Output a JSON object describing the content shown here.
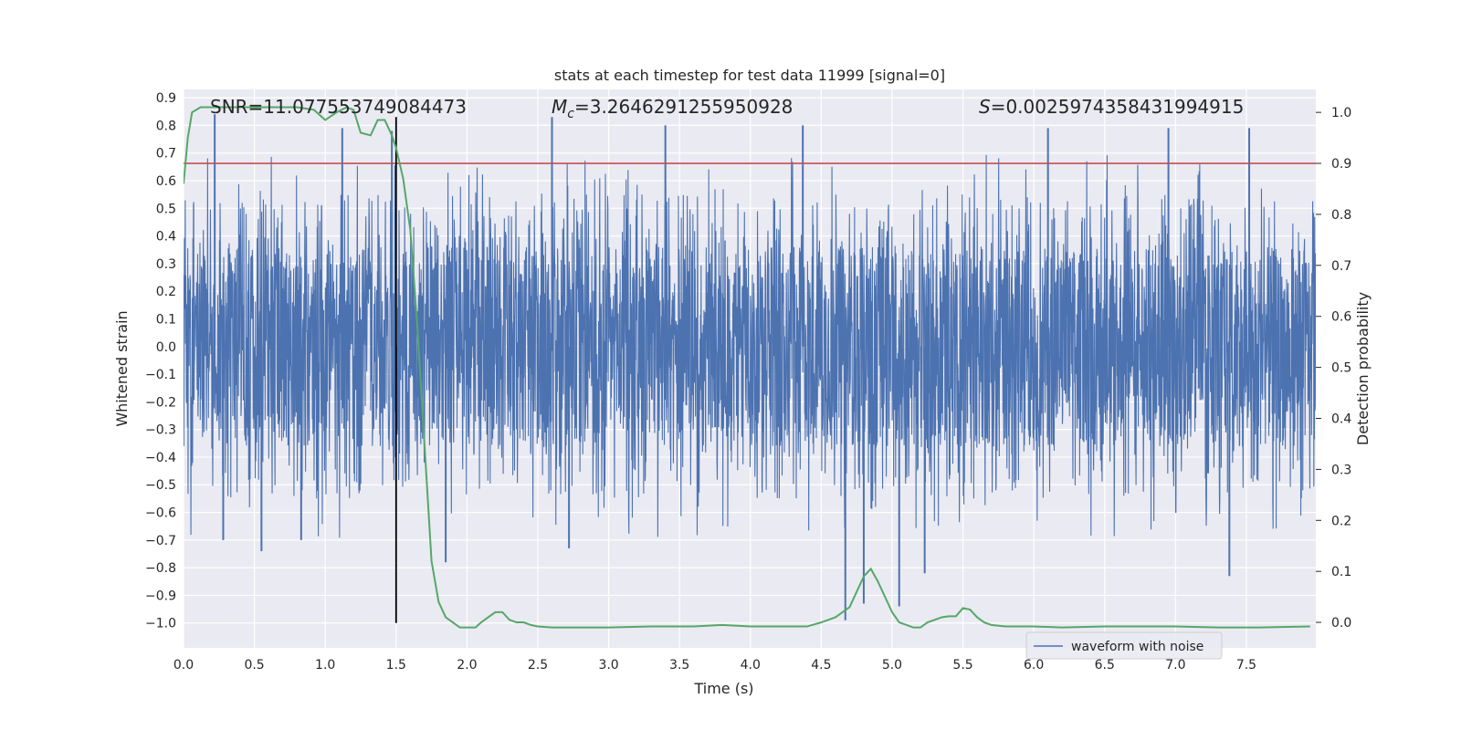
{
  "chart_data": {
    "type": "line",
    "title": "stats at each timestep for test data 11999 [signal=0]",
    "xlabel": "Time (s)",
    "ylabel": "Whitened strain",
    "y2label": "Detection probability",
    "xlim": [
      0.0,
      7.99
    ],
    "ylim": [
      -1.09,
      0.93
    ],
    "y2lim": [
      -0.05,
      1.045
    ],
    "xticks": [
      "0.0",
      "0.5",
      "1.0",
      "1.5",
      "2.0",
      "2.5",
      "3.0",
      "3.5",
      "4.0",
      "4.5",
      "5.0",
      "5.5",
      "6.0",
      "6.5",
      "7.0",
      "7.5"
    ],
    "yticks": [
      "0.9",
      "0.8",
      "0.7",
      "0.6",
      "0.5",
      "0.4",
      "0.3",
      "0.2",
      "0.1",
      "0.0",
      "−0.1",
      "−0.2",
      "−0.3",
      "−0.4",
      "−0.5",
      "−0.6",
      "−0.7",
      "−0.8",
      "−0.9",
      "−1.0"
    ],
    "y2ticks": [
      "1.0",
      "0.9",
      "0.8",
      "0.7",
      "0.6",
      "0.5",
      "0.4",
      "0.3",
      "0.2",
      "0.1",
      "0.0"
    ],
    "annotations": {
      "snr": "SNR=11.077553749084473",
      "mc_symbol": "M",
      "mc_sub": "c",
      "mc_value": "=3.2646291255950928",
      "s_symbol": "S",
      "s_value": "=0.0025974358431994915"
    },
    "threshold": {
      "detection_probability": 0.9,
      "color": "#c44e52"
    },
    "marker_time": 1.5,
    "marker_range": [
      -1.0,
      0.83
    ],
    "series": [
      {
        "name": "waveform with noise",
        "color": "#4c72b0",
        "description": "dense noise waveform, band roughly [-0.3, 0.3] with spikes up to ~0.83 and down to ~-0.99",
        "peaks": [
          {
            "t": 0.22,
            "v": 0.84
          },
          {
            "t": 0.28,
            "v": -0.7
          },
          {
            "t": 0.55,
            "v": -0.74
          },
          {
            "t": 0.83,
            "v": -0.7
          },
          {
            "t": 1.12,
            "v": 0.79
          },
          {
            "t": 1.47,
            "v": 0.78
          },
          {
            "t": 1.85,
            "v": -0.78
          },
          {
            "t": 2.6,
            "v": 0.83
          },
          {
            "t": 2.72,
            "v": -0.73
          },
          {
            "t": 3.4,
            "v": 0.8
          },
          {
            "t": 4.37,
            "v": 0.8
          },
          {
            "t": 4.67,
            "v": -0.99
          },
          {
            "t": 4.8,
            "v": -0.93
          },
          {
            "t": 5.05,
            "v": -0.94
          },
          {
            "t": 5.23,
            "v": -0.82
          },
          {
            "t": 6.1,
            "v": 0.79
          },
          {
            "t": 6.95,
            "v": 0.79
          },
          {
            "t": 7.38,
            "v": -0.83
          },
          {
            "t": 7.52,
            "v": 0.79
          }
        ]
      },
      {
        "name": "detection probability",
        "color": "#55a868",
        "axis": "right",
        "x": [
          0.0,
          0.03,
          0.06,
          0.12,
          0.2,
          0.4,
          0.6,
          0.8,
          0.92,
          1.0,
          1.08,
          1.15,
          1.2,
          1.25,
          1.32,
          1.37,
          1.42,
          1.47,
          1.5,
          1.55,
          1.6,
          1.65,
          1.7,
          1.75,
          1.8,
          1.85,
          1.9,
          1.95,
          2.0,
          2.06,
          2.1,
          2.15,
          2.2,
          2.25,
          2.3,
          2.35,
          2.4,
          2.45,
          2.5,
          2.6,
          2.8,
          3.0,
          3.3,
          3.6,
          3.8,
          4.0,
          4.2,
          4.4,
          4.5,
          4.55,
          4.6,
          4.65,
          4.7,
          4.75,
          4.8,
          4.85,
          4.9,
          4.95,
          5.0,
          5.05,
          5.1,
          5.15,
          5.2,
          5.25,
          5.3,
          5.35,
          5.4,
          5.45,
          5.5,
          5.55,
          5.6,
          5.65,
          5.7,
          5.8,
          6.0,
          6.2,
          6.5,
          6.8,
          7.0,
          7.3,
          7.6,
          7.95
        ],
        "y": [
          0.86,
          0.95,
          1.0,
          1.01,
          1.01,
          1.01,
          1.01,
          1.01,
          1.005,
          0.985,
          1.0,
          1.01,
          1.005,
          0.96,
          0.955,
          0.985,
          0.985,
          0.955,
          0.93,
          0.87,
          0.77,
          0.58,
          0.35,
          0.12,
          0.04,
          0.01,
          0.0,
          -0.01,
          -0.01,
          -0.01,
          0.0,
          0.01,
          0.02,
          0.02,
          0.005,
          0.0,
          0.0,
          -0.005,
          -0.008,
          -0.01,
          -0.01,
          -0.01,
          -0.008,
          -0.008,
          -0.005,
          -0.008,
          -0.008,
          -0.008,
          0.0,
          0.005,
          0.01,
          0.02,
          0.03,
          0.06,
          0.09,
          0.105,
          0.08,
          0.05,
          0.02,
          0.0,
          -0.005,
          -0.01,
          -0.01,
          0.0,
          0.005,
          0.01,
          0.012,
          0.012,
          0.028,
          0.025,
          0.01,
          0.0,
          -0.005,
          -0.008,
          -0.008,
          -0.01,
          -0.008,
          -0.008,
          -0.008,
          -0.01,
          -0.01,
          -0.008
        ]
      }
    ],
    "legend": {
      "position": "bottom-right",
      "entries": [
        "waveform with noise"
      ]
    }
  }
}
